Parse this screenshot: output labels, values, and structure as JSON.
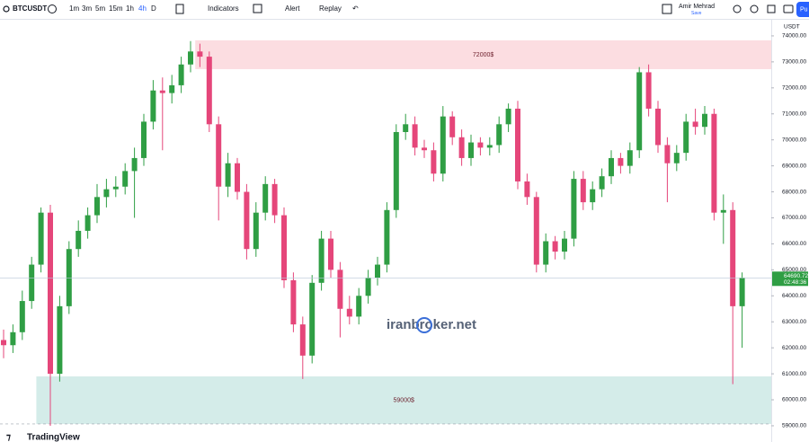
{
  "toolbar": {
    "symbol": "BTCUSDT",
    "intervals": [
      "1m",
      "3m",
      "5m",
      "15m",
      "1h",
      "4h",
      "D"
    ],
    "indicators": "Indicators",
    "alert": "Alert",
    "replay": "Replay",
    "user": "Amir Mehrad",
    "status": "Save",
    "publish": "Pu"
  },
  "watermark": "iranbroker.net",
  "brand": "TradingView",
  "chart_data": {
    "type": "candlestick",
    "currency": "USDT",
    "up_color": "#2f9e44",
    "down_color": "#e5467a",
    "ylim": [
      58860,
      74620
    ],
    "yticks": [
      {
        "value": 59000,
        "label": "59000.00"
      },
      {
        "value": 60000,
        "label": "60000.00"
      },
      {
        "value": 61000,
        "label": "61000.00"
      },
      {
        "value": 62000,
        "label": "62000.00"
      },
      {
        "value": 63000,
        "label": "63000.00"
      },
      {
        "value": 64000,
        "label": "64000.00"
      },
      {
        "value": 65000,
        "label": "65000.00"
      },
      {
        "value": 66000,
        "label": "66000.00"
      },
      {
        "value": 67000,
        "label": "67000.00"
      },
      {
        "value": 68000,
        "label": "68000.00"
      },
      {
        "value": 69000,
        "label": "69000.00"
      },
      {
        "value": 70000,
        "label": "70000.00"
      },
      {
        "value": 71000,
        "label": "71000.00"
      },
      {
        "value": 72000,
        "label": "72000.00"
      },
      {
        "value": 73000,
        "label": "73000.00"
      },
      {
        "value": 74000,
        "label": "74000.00"
      }
    ],
    "last_price": 64690.72,
    "countdown": "02:48:36",
    "zones": [
      {
        "label": "72000$",
        "from": 72720,
        "to": 73830,
        "start": 21,
        "color": "#fcdde1"
      },
      {
        "label": "59000$",
        "from": 59070,
        "to": 60900,
        "start": 4,
        "color": "#d4ece9"
      }
    ],
    "ohlc": [
      [
        62300,
        62700,
        61600,
        62100
      ],
      [
        62100,
        62900,
        61800,
        62600
      ],
      [
        62600,
        64200,
        62300,
        63800
      ],
      [
        63800,
        65500,
        63500,
        65200
      ],
      [
        65200,
        67400,
        64900,
        67200
      ],
      [
        67200,
        67500,
        59000,
        61000
      ],
      [
        61000,
        64000,
        60700,
        63600
      ],
      [
        63600,
        66100,
        63300,
        65800
      ],
      [
        65800,
        66900,
        65500,
        66500
      ],
      [
        66500,
        67400,
        66200,
        67100
      ],
      [
        67100,
        68300,
        66800,
        67800
      ],
      [
        67800,
        68500,
        67400,
        68100
      ],
      [
        68100,
        68600,
        67800,
        68200
      ],
      [
        68200,
        69100,
        67900,
        68800
      ],
      [
        68800,
        69700,
        67000,
        69300
      ],
      [
        69300,
        71000,
        69000,
        70700
      ],
      [
        70700,
        72300,
        70400,
        71900
      ],
      [
        71900,
        72400,
        69600,
        71800
      ],
      [
        71800,
        72500,
        71400,
        72100
      ],
      [
        72100,
        73200,
        71800,
        72900
      ],
      [
        72900,
        73800,
        72600,
        73400
      ],
      [
        73400,
        73700,
        72800,
        73200
      ],
      [
        73200,
        73400,
        70300,
        70600
      ],
      [
        70600,
        70900,
        66900,
        68200
      ],
      [
        68200,
        69500,
        67800,
        69100
      ],
      [
        69100,
        69300,
        67700,
        68000
      ],
      [
        68000,
        68300,
        65400,
        65800
      ],
      [
        65800,
        67600,
        65500,
        67200
      ],
      [
        67200,
        68600,
        66900,
        68300
      ],
      [
        68300,
        68500,
        66800,
        67100
      ],
      [
        67100,
        67400,
        64300,
        64600
      ],
      [
        64600,
        64900,
        62600,
        62900
      ],
      [
        62900,
        63200,
        60800,
        61700
      ],
      [
        61700,
        64800,
        61400,
        64500
      ],
      [
        64500,
        66500,
        64200,
        66200
      ],
      [
        66200,
        66500,
        64700,
        65000
      ],
      [
        65000,
        65300,
        62400,
        63500
      ],
      [
        63500,
        64000,
        62900,
        63200
      ],
      [
        63200,
        64300,
        62900,
        64000
      ],
      [
        64000,
        65000,
        63700,
        64700
      ],
      [
        64700,
        65500,
        64400,
        65200
      ],
      [
        65200,
        67600,
        64900,
        67300
      ],
      [
        67300,
        70600,
        67000,
        70300
      ],
      [
        70300,
        71000,
        70000,
        70600
      ],
      [
        70600,
        70900,
        69400,
        69700
      ],
      [
        69700,
        70000,
        69300,
        69600
      ],
      [
        69600,
        69900,
        68400,
        68700
      ],
      [
        68700,
        71300,
        68400,
        70900
      ],
      [
        70900,
        71100,
        69800,
        70100
      ],
      [
        70100,
        70400,
        69000,
        69300
      ],
      [
        69300,
        70200,
        69000,
        69900
      ],
      [
        69900,
        70100,
        69400,
        69700
      ],
      [
        69700,
        70100,
        69400,
        69800
      ],
      [
        69800,
        70900,
        69500,
        70600
      ],
      [
        70600,
        71400,
        70300,
        71200
      ],
      [
        71200,
        71500,
        68100,
        68400
      ],
      [
        68400,
        68700,
        67500,
        67800
      ],
      [
        67800,
        68000,
        64900,
        65200
      ],
      [
        65200,
        66400,
        64900,
        66100
      ],
      [
        66100,
        66300,
        65400,
        65700
      ],
      [
        65700,
        66500,
        65400,
        66200
      ],
      [
        66200,
        68800,
        65900,
        68500
      ],
      [
        68500,
        68800,
        67300,
        67600
      ],
      [
        67600,
        68400,
        67300,
        68100
      ],
      [
        68100,
        68900,
        67800,
        68600
      ],
      [
        68600,
        69600,
        68300,
        69300
      ],
      [
        69300,
        69500,
        68700,
        69000
      ],
      [
        69000,
        69900,
        68700,
        69600
      ],
      [
        69600,
        72800,
        69300,
        72600
      ],
      [
        72600,
        72900,
        70900,
        71200
      ],
      [
        71200,
        71500,
        69500,
        69800
      ],
      [
        69800,
        70100,
        67600,
        69100
      ],
      [
        69100,
        69800,
        68800,
        69500
      ],
      [
        69500,
        71000,
        69200,
        70700
      ],
      [
        70700,
        71200,
        70200,
        70500
      ],
      [
        70500,
        71300,
        70200,
        71000
      ],
      [
        71000,
        71200,
        66900,
        67200
      ],
      [
        67200,
        67900,
        66000,
        67300
      ],
      [
        67300,
        67600,
        60600,
        63600
      ],
      [
        63600,
        64900,
        62000,
        64690.72
      ]
    ]
  }
}
